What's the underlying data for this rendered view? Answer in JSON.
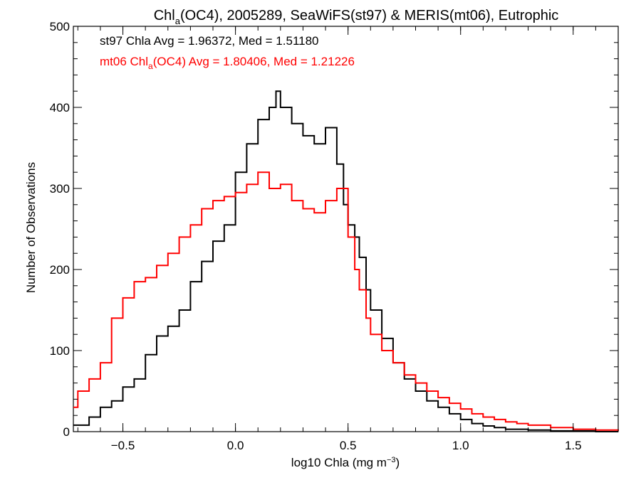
{
  "chart_data": {
    "type": "line",
    "title_parts": [
      "Chl",
      "a",
      "(OC4), 2005289, SeaWiFS(st97) & MERIS(mt06), Eutrophic"
    ],
    "xlabel_parts": [
      "log10 Chla (mg m",
      "−3",
      ")"
    ],
    "ylabel": "Number of Observations",
    "xlim": [
      -0.72,
      1.7
    ],
    "ylim": [
      0,
      500
    ],
    "x_ticks": [
      -0.5,
      0.0,
      0.5,
      1.0,
      1.5
    ],
    "x_tick_labels": [
      "−0.5",
      "0.0",
      "0.5",
      "1.0",
      "1.5"
    ],
    "y_ticks": [
      0,
      100,
      200,
      300,
      400,
      500
    ],
    "y_tick_labels": [
      "0",
      "100",
      "200",
      "300",
      "400",
      "500"
    ],
    "annotations": [
      {
        "parts": [
          "st97 Chla Avg = 1.96372, Med = 1.51180"
        ],
        "color": "#000000"
      },
      {
        "parts": [
          "mt06 Chl",
          "a",
          "(OC4) Avg = 1.80406, Med = 1.21226"
        ],
        "color": "#ff0000"
      }
    ],
    "series": [
      {
        "color": "#000000",
        "x": [
          -0.72,
          -0.65,
          -0.6,
          -0.55,
          -0.5,
          -0.45,
          -0.4,
          -0.35,
          -0.3,
          -0.25,
          -0.2,
          -0.15,
          -0.1,
          -0.05,
          0.0,
          0.05,
          0.1,
          0.15,
          0.18,
          0.2,
          0.25,
          0.3,
          0.35,
          0.4,
          0.45,
          0.48,
          0.5,
          0.53,
          0.55,
          0.58,
          0.6,
          0.65,
          0.7,
          0.75,
          0.8,
          0.85,
          0.9,
          0.95,
          1.0,
          1.05,
          1.1,
          1.15,
          1.2,
          1.3,
          1.4,
          1.5,
          1.6,
          1.7
        ],
        "y": [
          8,
          18,
          30,
          38,
          55,
          65,
          95,
          118,
          130,
          150,
          185,
          210,
          235,
          255,
          320,
          355,
          385,
          400,
          420,
          400,
          380,
          365,
          355,
          375,
          330,
          280,
          255,
          240,
          215,
          175,
          150,
          115,
          85,
          65,
          50,
          38,
          30,
          22,
          15,
          10,
          7,
          5,
          3,
          2,
          1,
          1,
          0,
          0
        ]
      },
      {
        "color": "#ff0000",
        "x": [
          -0.72,
          -0.7,
          -0.65,
          -0.6,
          -0.55,
          -0.5,
          -0.45,
          -0.4,
          -0.35,
          -0.3,
          -0.25,
          -0.2,
          -0.15,
          -0.1,
          -0.05,
          0.0,
          0.05,
          0.1,
          0.15,
          0.2,
          0.25,
          0.3,
          0.35,
          0.4,
          0.45,
          0.5,
          0.53,
          0.55,
          0.58,
          0.6,
          0.65,
          0.7,
          0.75,
          0.8,
          0.85,
          0.9,
          0.95,
          1.0,
          1.05,
          1.1,
          1.15,
          1.2,
          1.25,
          1.3,
          1.4,
          1.5,
          1.6,
          1.7
        ],
        "y": [
          30,
          50,
          65,
          85,
          140,
          165,
          185,
          190,
          205,
          220,
          240,
          255,
          275,
          285,
          290,
          295,
          305,
          320,
          300,
          305,
          285,
          275,
          270,
          285,
          300,
          240,
          200,
          175,
          140,
          120,
          100,
          85,
          70,
          60,
          50,
          42,
          35,
          28,
          22,
          18,
          15,
          12,
          10,
          8,
          5,
          3,
          2,
          1
        ]
      }
    ]
  }
}
